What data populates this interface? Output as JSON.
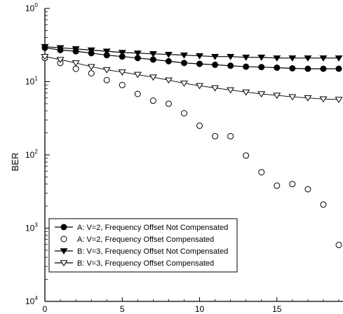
{
  "chart_data": {
    "type": "line",
    "ylabel": "BER",
    "xlabel": "",
    "xlim": [
      0,
      19
    ],
    "ylim": [
      0.0001,
      1
    ],
    "yscale": "log",
    "xticks": [
      0,
      5,
      10,
      15
    ],
    "yticks": [
      {
        "value": 1,
        "base": "10",
        "exp": "0"
      },
      {
        "value": 0.1,
        "base": "10",
        "exp": "1"
      },
      {
        "value": 0.01,
        "base": "10",
        "exp": "2"
      },
      {
        "value": 0.001,
        "base": "10",
        "exp": "3"
      },
      {
        "value": 0.0001,
        "base": "10",
        "exp": "4"
      }
    ],
    "legend_position": "bottom-left",
    "grid": false,
    "series": [
      {
        "name": "A: V=2, Frequency Offset Not Compensated",
        "marker": "filled-circle",
        "line": true,
        "x": [
          0,
          1,
          2,
          3,
          4,
          5,
          6,
          7,
          8,
          9,
          10,
          11,
          12,
          13,
          14,
          15,
          16,
          17,
          18,
          19
        ],
        "y": [
          0.29,
          0.27,
          0.26,
          0.245,
          0.23,
          0.22,
          0.21,
          0.2,
          0.19,
          0.18,
          0.175,
          0.17,
          0.165,
          0.16,
          0.158,
          0.155,
          0.152,
          0.15,
          0.15,
          0.15
        ]
      },
      {
        "name": "A: V=2, Frequency Offset Compensated",
        "marker": "open-circle",
        "line": false,
        "x": [
          0,
          1,
          2,
          3,
          4,
          5,
          6,
          7,
          8,
          9,
          10,
          11,
          12,
          13,
          14,
          15,
          16,
          17,
          18,
          19
        ],
        "y": [
          0.21,
          0.18,
          0.15,
          0.13,
          0.105,
          0.09,
          0.068,
          0.055,
          0.05,
          0.037,
          0.025,
          0.018,
          0.018,
          0.0098,
          0.0058,
          0.0038,
          0.004,
          0.0034,
          0.0021,
          0.00059
        ]
      },
      {
        "name": "B: V=3, Frequency Offset Not Compensated",
        "marker": "filled-triangle-down",
        "line": true,
        "x": [
          0,
          1,
          2,
          3,
          4,
          5,
          6,
          7,
          8,
          9,
          10,
          11,
          12,
          13,
          14,
          15,
          16,
          17,
          18,
          19
        ],
        "y": [
          0.3,
          0.29,
          0.28,
          0.27,
          0.26,
          0.25,
          0.245,
          0.24,
          0.235,
          0.23,
          0.225,
          0.22,
          0.22,
          0.215,
          0.215,
          0.21,
          0.21,
          0.21,
          0.21,
          0.21
        ]
      },
      {
        "name": "B: V=3, Frequency Offset Compensated",
        "marker": "open-triangle-down",
        "line": true,
        "x": [
          0,
          1,
          2,
          3,
          4,
          5,
          6,
          7,
          8,
          9,
          10,
          11,
          12,
          13,
          14,
          15,
          16,
          17,
          18,
          19
        ],
        "y": [
          0.22,
          0.2,
          0.18,
          0.16,
          0.145,
          0.135,
          0.125,
          0.115,
          0.105,
          0.095,
          0.088,
          0.082,
          0.077,
          0.072,
          0.068,
          0.065,
          0.062,
          0.06,
          0.058,
          0.057
        ]
      }
    ]
  }
}
